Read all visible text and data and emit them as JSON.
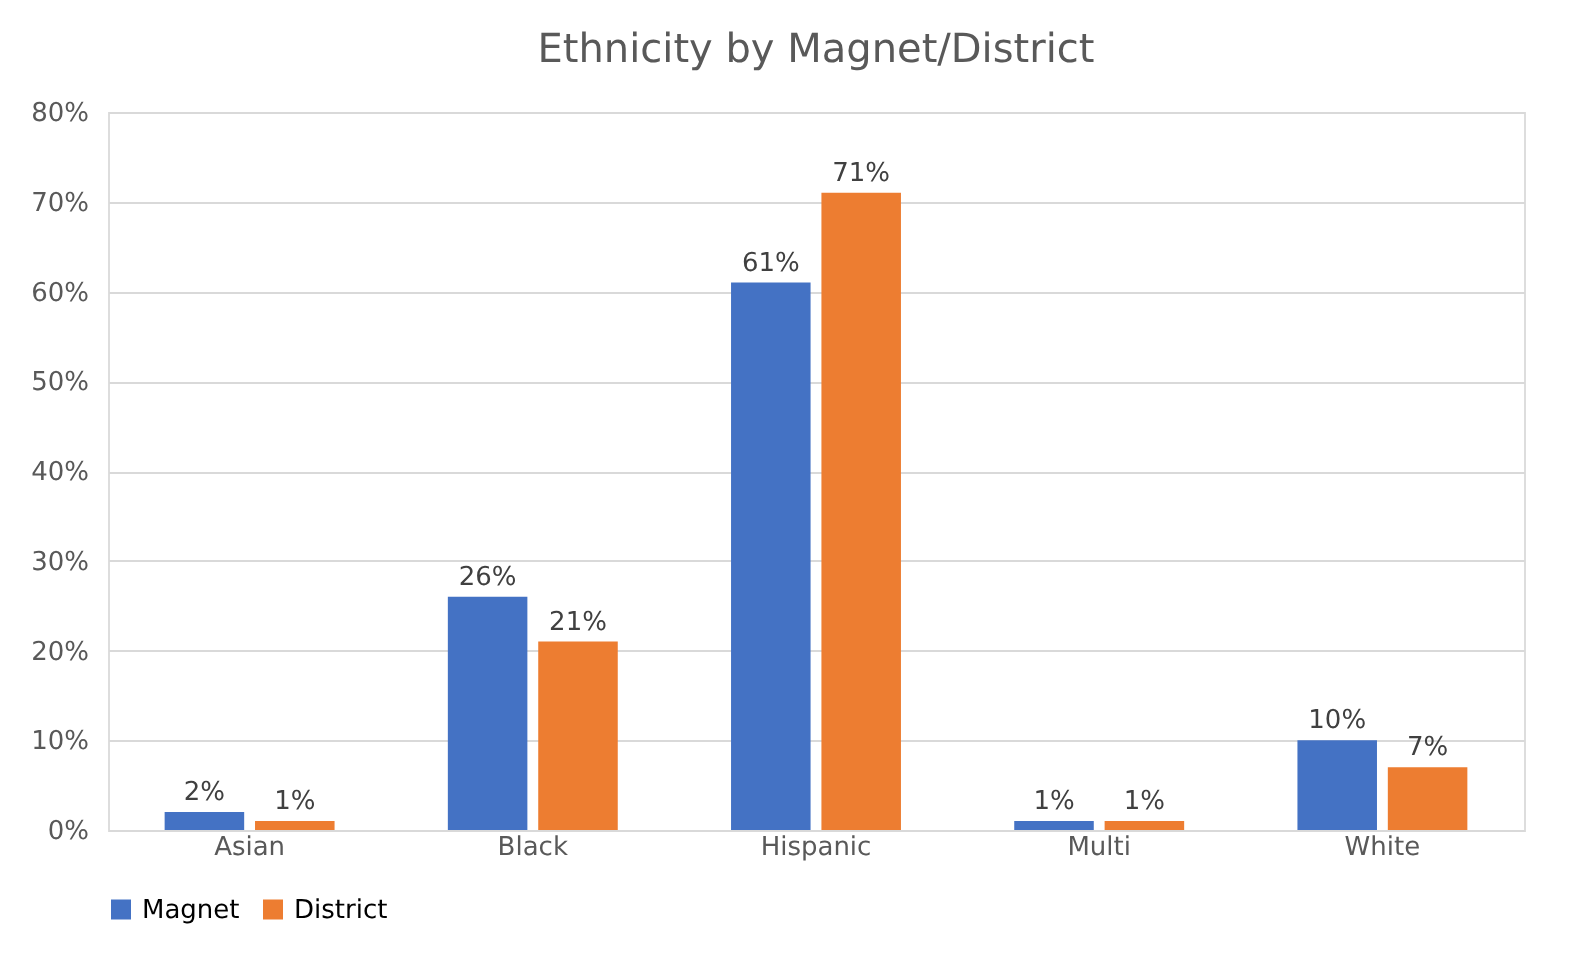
{
  "chart_data": {
    "type": "bar",
    "title": "Ethnicity by Magnet/District",
    "categories": [
      "Asian",
      "Black",
      "Hispanic",
      "Multi",
      "White"
    ],
    "series": [
      {
        "name": "Magnet",
        "color": "#4472c4",
        "values": [
          2,
          26,
          61,
          1,
          10
        ],
        "value_labels": [
          "2%",
          "26%",
          "61%",
          "1%",
          "10%"
        ]
      },
      {
        "name": "District",
        "color": "#ed7d31",
        "values": [
          1,
          21,
          71,
          1,
          7
        ],
        "value_labels": [
          "1%",
          "21%",
          "71%",
          "1%",
          "7%"
        ]
      }
    ],
    "ylim": [
      0,
      80
    ],
    "yticks": [
      {
        "value": 0,
        "label": "0%"
      },
      {
        "value": 10,
        "label": "10%"
      },
      {
        "value": 20,
        "label": "20%"
      },
      {
        "value": 30,
        "label": "30%"
      },
      {
        "value": 40,
        "label": "40%"
      },
      {
        "value": 50,
        "label": "50%"
      },
      {
        "value": 60,
        "label": "60%"
      },
      {
        "value": 70,
        "label": "70%"
      },
      {
        "value": 80,
        "label": "80%"
      }
    ],
    "grid": "y",
    "legend": "bottom"
  }
}
